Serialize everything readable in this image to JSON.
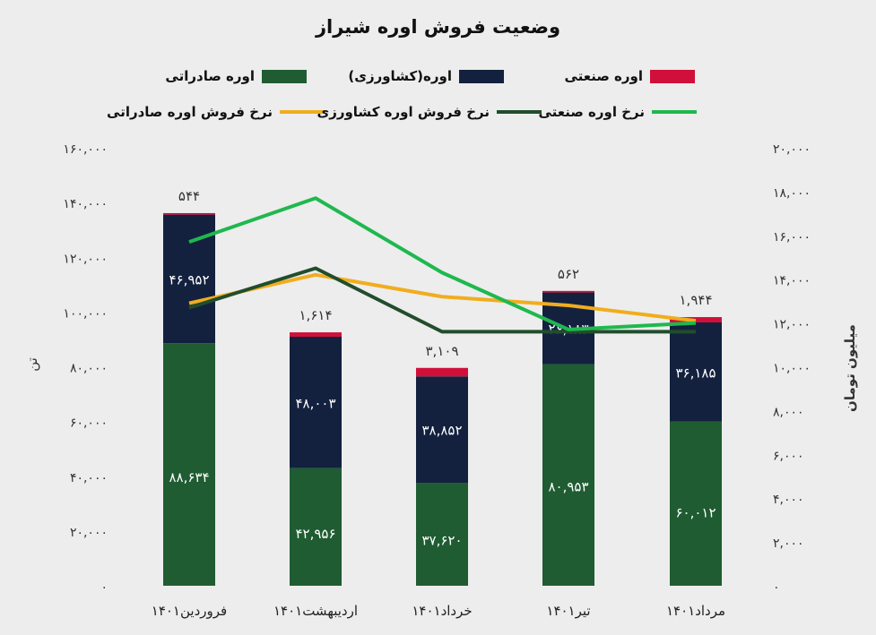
{
  "chart_data": {
    "type": "bar",
    "title": "وضعیت فروش اوره شیراز",
    "categories": [
      "فروردین۱۴۰۱",
      "اردیبهشت۱۴۰۱",
      "خرداد۱۴۰۱",
      "تیر۱۴۰۱",
      "مرداد۱۴۰۱"
    ],
    "stack_series": [
      {
        "name": "اوره صادراتی",
        "color": "#1f5c32",
        "values": [
          88634,
          42956,
          37620,
          80953,
          60012
        ],
        "labels": [
          "۸۸,۶۳۴",
          "۴۲,۹۵۶",
          "۳۷,۶۲۰",
          "۸۰,۹۵۳",
          "۶۰,۰۱۲"
        ]
      },
      {
        "name": "اوره(کشاورزی)",
        "color": "#13213f",
        "values": [
          46952,
          48003,
          38852,
          26183,
          36185
        ],
        "labels": [
          "۴۶,۹۵۲",
          "۴۸,۰۰۳",
          "۳۸,۸۵۲",
          "۲۶,۱۸۳",
          "۳۶,۱۸۵"
        ]
      },
      {
        "name": "اوره صنعتی",
        "color": "#d0103a",
        "values": [
          544,
          1614,
          3109,
          562,
          1944
        ],
        "labels": [
          "۵۴۴",
          "۱,۶۱۴",
          "۳,۱۰۹",
          "۵۶۲",
          "۱,۹۴۴"
        ]
      }
    ],
    "line_series": [
      {
        "name": "نرخ فروش اوره صادراتی",
        "color": "#f0ad1e",
        "values": [
          12900,
          14200,
          13200,
          12800,
          12100
        ]
      },
      {
        "name": "نرخ فروش اوره کشاورزی",
        "color": "#214d2c",
        "values": [
          12700,
          14500,
          11600,
          11600,
          11600
        ]
      },
      {
        "name": "نرخ اوره صنعتی",
        "color": "#1fb84e",
        "values": [
          15700,
          17700,
          14300,
          11700,
          12000
        ]
      }
    ],
    "y_left": {
      "label": "تن",
      "min": 0,
      "max": 160000,
      "ticks": [
        "۰",
        "۲۰,۰۰۰",
        "۴۰,۰۰۰",
        "۶۰,۰۰۰",
        "۸۰,۰۰۰",
        "۱۰۰,۰۰۰",
        "۱۲۰,۰۰۰",
        "۱۴۰,۰۰۰",
        "۱۶۰,۰۰۰"
      ]
    },
    "y_right": {
      "label": "میلیون تومان",
      "min": 0,
      "max": 20000,
      "ticks": [
        "۰",
        "۲,۰۰۰",
        "۴,۰۰۰",
        "۶,۰۰۰",
        "۸,۰۰۰",
        "۱۰,۰۰۰",
        "۱۲,۰۰۰",
        "۱۴,۰۰۰",
        "۱۶,۰۰۰",
        "۱۸,۰۰۰",
        "۲۰,۰۰۰"
      ]
    },
    "grid": false,
    "legend_position": "top"
  }
}
